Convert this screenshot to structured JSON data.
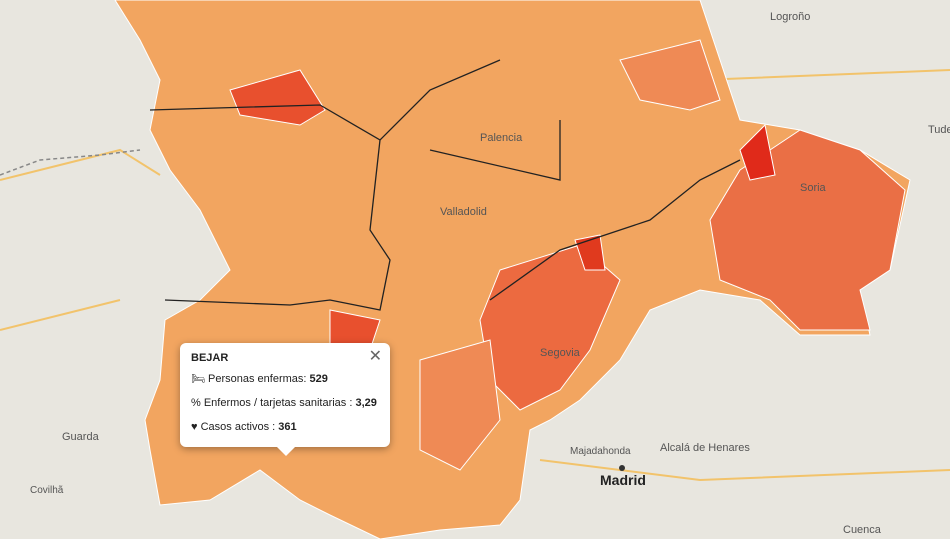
{
  "map": {
    "labels": {
      "logrono": "Logroño",
      "tudela": "Tude",
      "soria": "Soria",
      "segovia": "Segovia",
      "madrid": "Madrid",
      "majadahonda": "Majadahonda",
      "alcala": "Alcalá de Henares",
      "guarda": "Guarda",
      "covilha": "Covilhã",
      "cuenca": "Cuenca",
      "palencia": "Palencia",
      "valladolid": "Valladolid"
    }
  },
  "popup": {
    "title": "BEJAR",
    "rows": [
      {
        "label": "Personas enfermas: ",
        "value": 529
      },
      {
        "label": "Enfermos / tarjetas sanitarias : ",
        "value": "3,29"
      },
      {
        "label": "Casos activos : ",
        "value": 361
      }
    ]
  }
}
